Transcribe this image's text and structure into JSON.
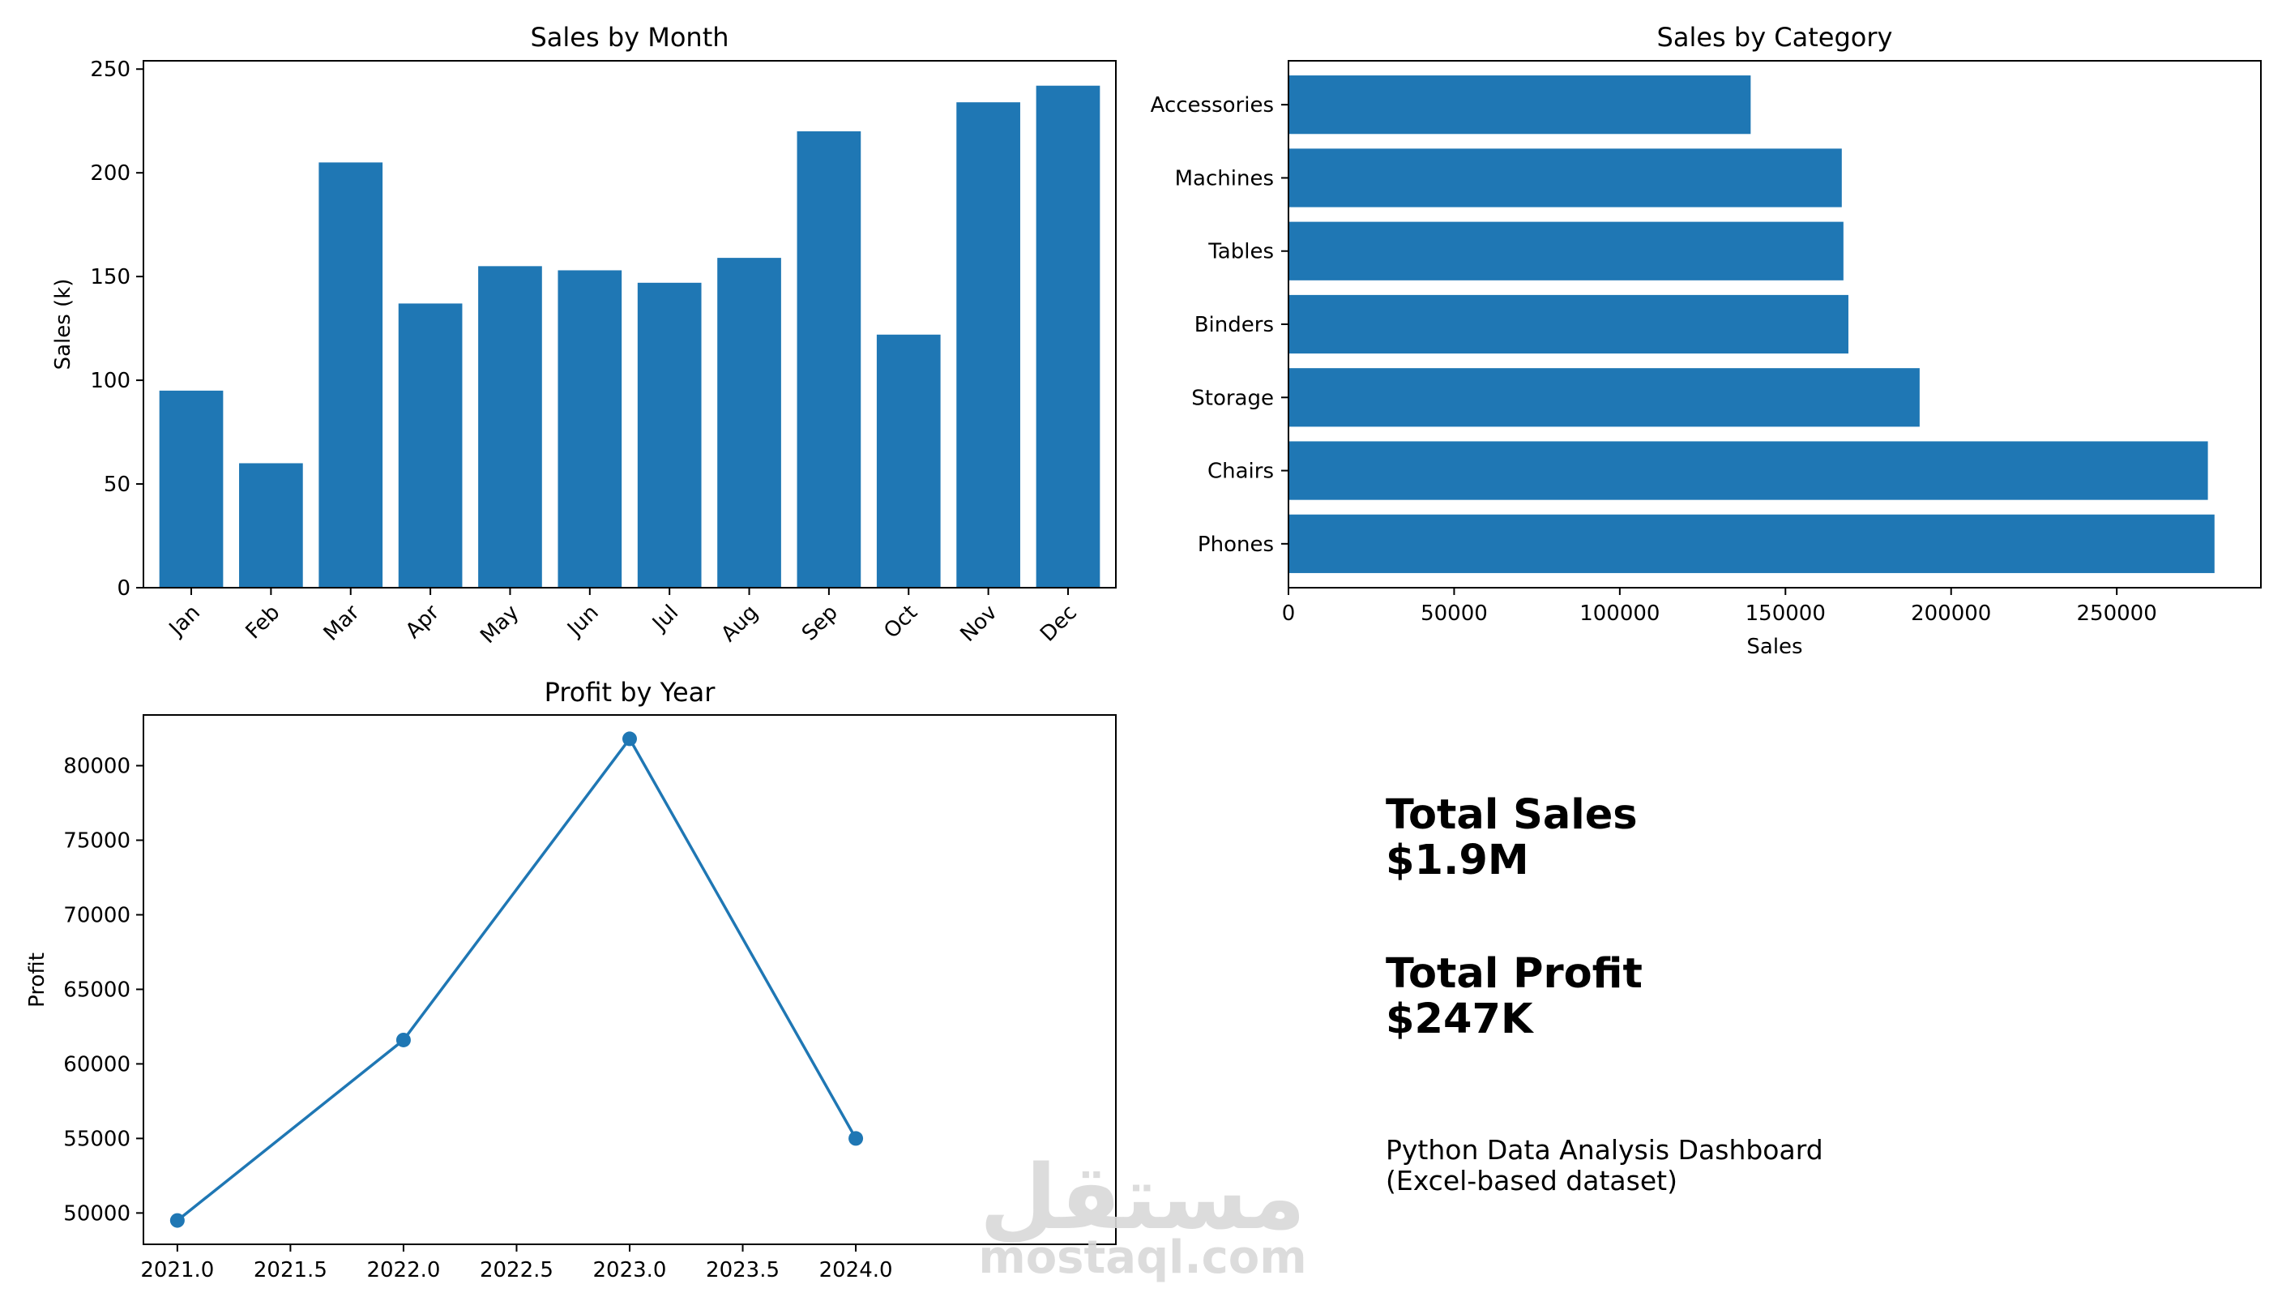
{
  "chart_data": [
    {
      "type": "bar",
      "title": "Sales by Month",
      "xlabel": "",
      "ylabel": "Sales (k)",
      "categories": [
        "Jan",
        "Feb",
        "Mar",
        "Apr",
        "May",
        "Jun",
        "Jul",
        "Aug",
        "Sep",
        "Oct",
        "Nov",
        "Dec"
      ],
      "values": [
        95,
        60,
        205,
        137,
        155,
        153,
        147,
        159,
        220,
        122,
        234,
        242
      ],
      "ylim": [
        0,
        254
      ],
      "yticks": [
        0,
        50,
        100,
        150,
        200,
        250
      ],
      "ytick_labels": [
        "0",
        "50",
        "100",
        "150",
        "200",
        "250"
      ],
      "color": "#1f77b4"
    },
    {
      "type": "bar",
      "orientation": "horizontal",
      "title": "Sales by Category",
      "xlabel": "Sales",
      "ylabel": "",
      "categories": [
        "Phones",
        "Chairs",
        "Storage",
        "Binders",
        "Tables",
        "Machines",
        "Accessories"
      ],
      "values": [
        279500,
        277500,
        190500,
        169000,
        167500,
        167000,
        139500
      ],
      "xlim": [
        0,
        293500
      ],
      "xticks": [
        0,
        50000,
        100000,
        150000,
        200000,
        250000
      ],
      "xtick_labels": [
        "0",
        "50000",
        "100000",
        "150000",
        "200000",
        "250000"
      ],
      "color": "#1f77b4"
    },
    {
      "type": "line",
      "title": "Profit by Year",
      "xlabel": "",
      "ylabel": "Profit",
      "x": [
        2021.0,
        2022.0,
        2023.0,
        2024.0
      ],
      "y": [
        49500,
        61600,
        81800,
        55000
      ],
      "xlim": [
        2020.85,
        2025.15
      ],
      "ylim": [
        47900,
        83400
      ],
      "xticks": [
        2021.0,
        2021.5,
        2022.0,
        2022.5,
        2023.0,
        2023.5,
        2024.0
      ],
      "xtick_labels": [
        "2021.0",
        "2021.5",
        "2022.0",
        "2022.5",
        "2023.0",
        "2023.5",
        "2024.0"
      ],
      "yticks": [
        50000,
        55000,
        60000,
        65000,
        70000,
        75000,
        80000
      ],
      "ytick_labels": [
        "50000",
        "55000",
        "60000",
        "65000",
        "70000",
        "75000",
        "80000"
      ],
      "color": "#1f77b4"
    }
  ],
  "kpis": {
    "sales_label": "Total Sales",
    "sales_value": "$1.9M",
    "profit_label": "Total Profit",
    "profit_value": "$247K"
  },
  "caption": {
    "line1": "Python Data Analysis Dashboard",
    "line2": "(Excel-based dataset)"
  },
  "watermark": {
    "logo": "مستقل",
    "text": "mostaql.com"
  }
}
